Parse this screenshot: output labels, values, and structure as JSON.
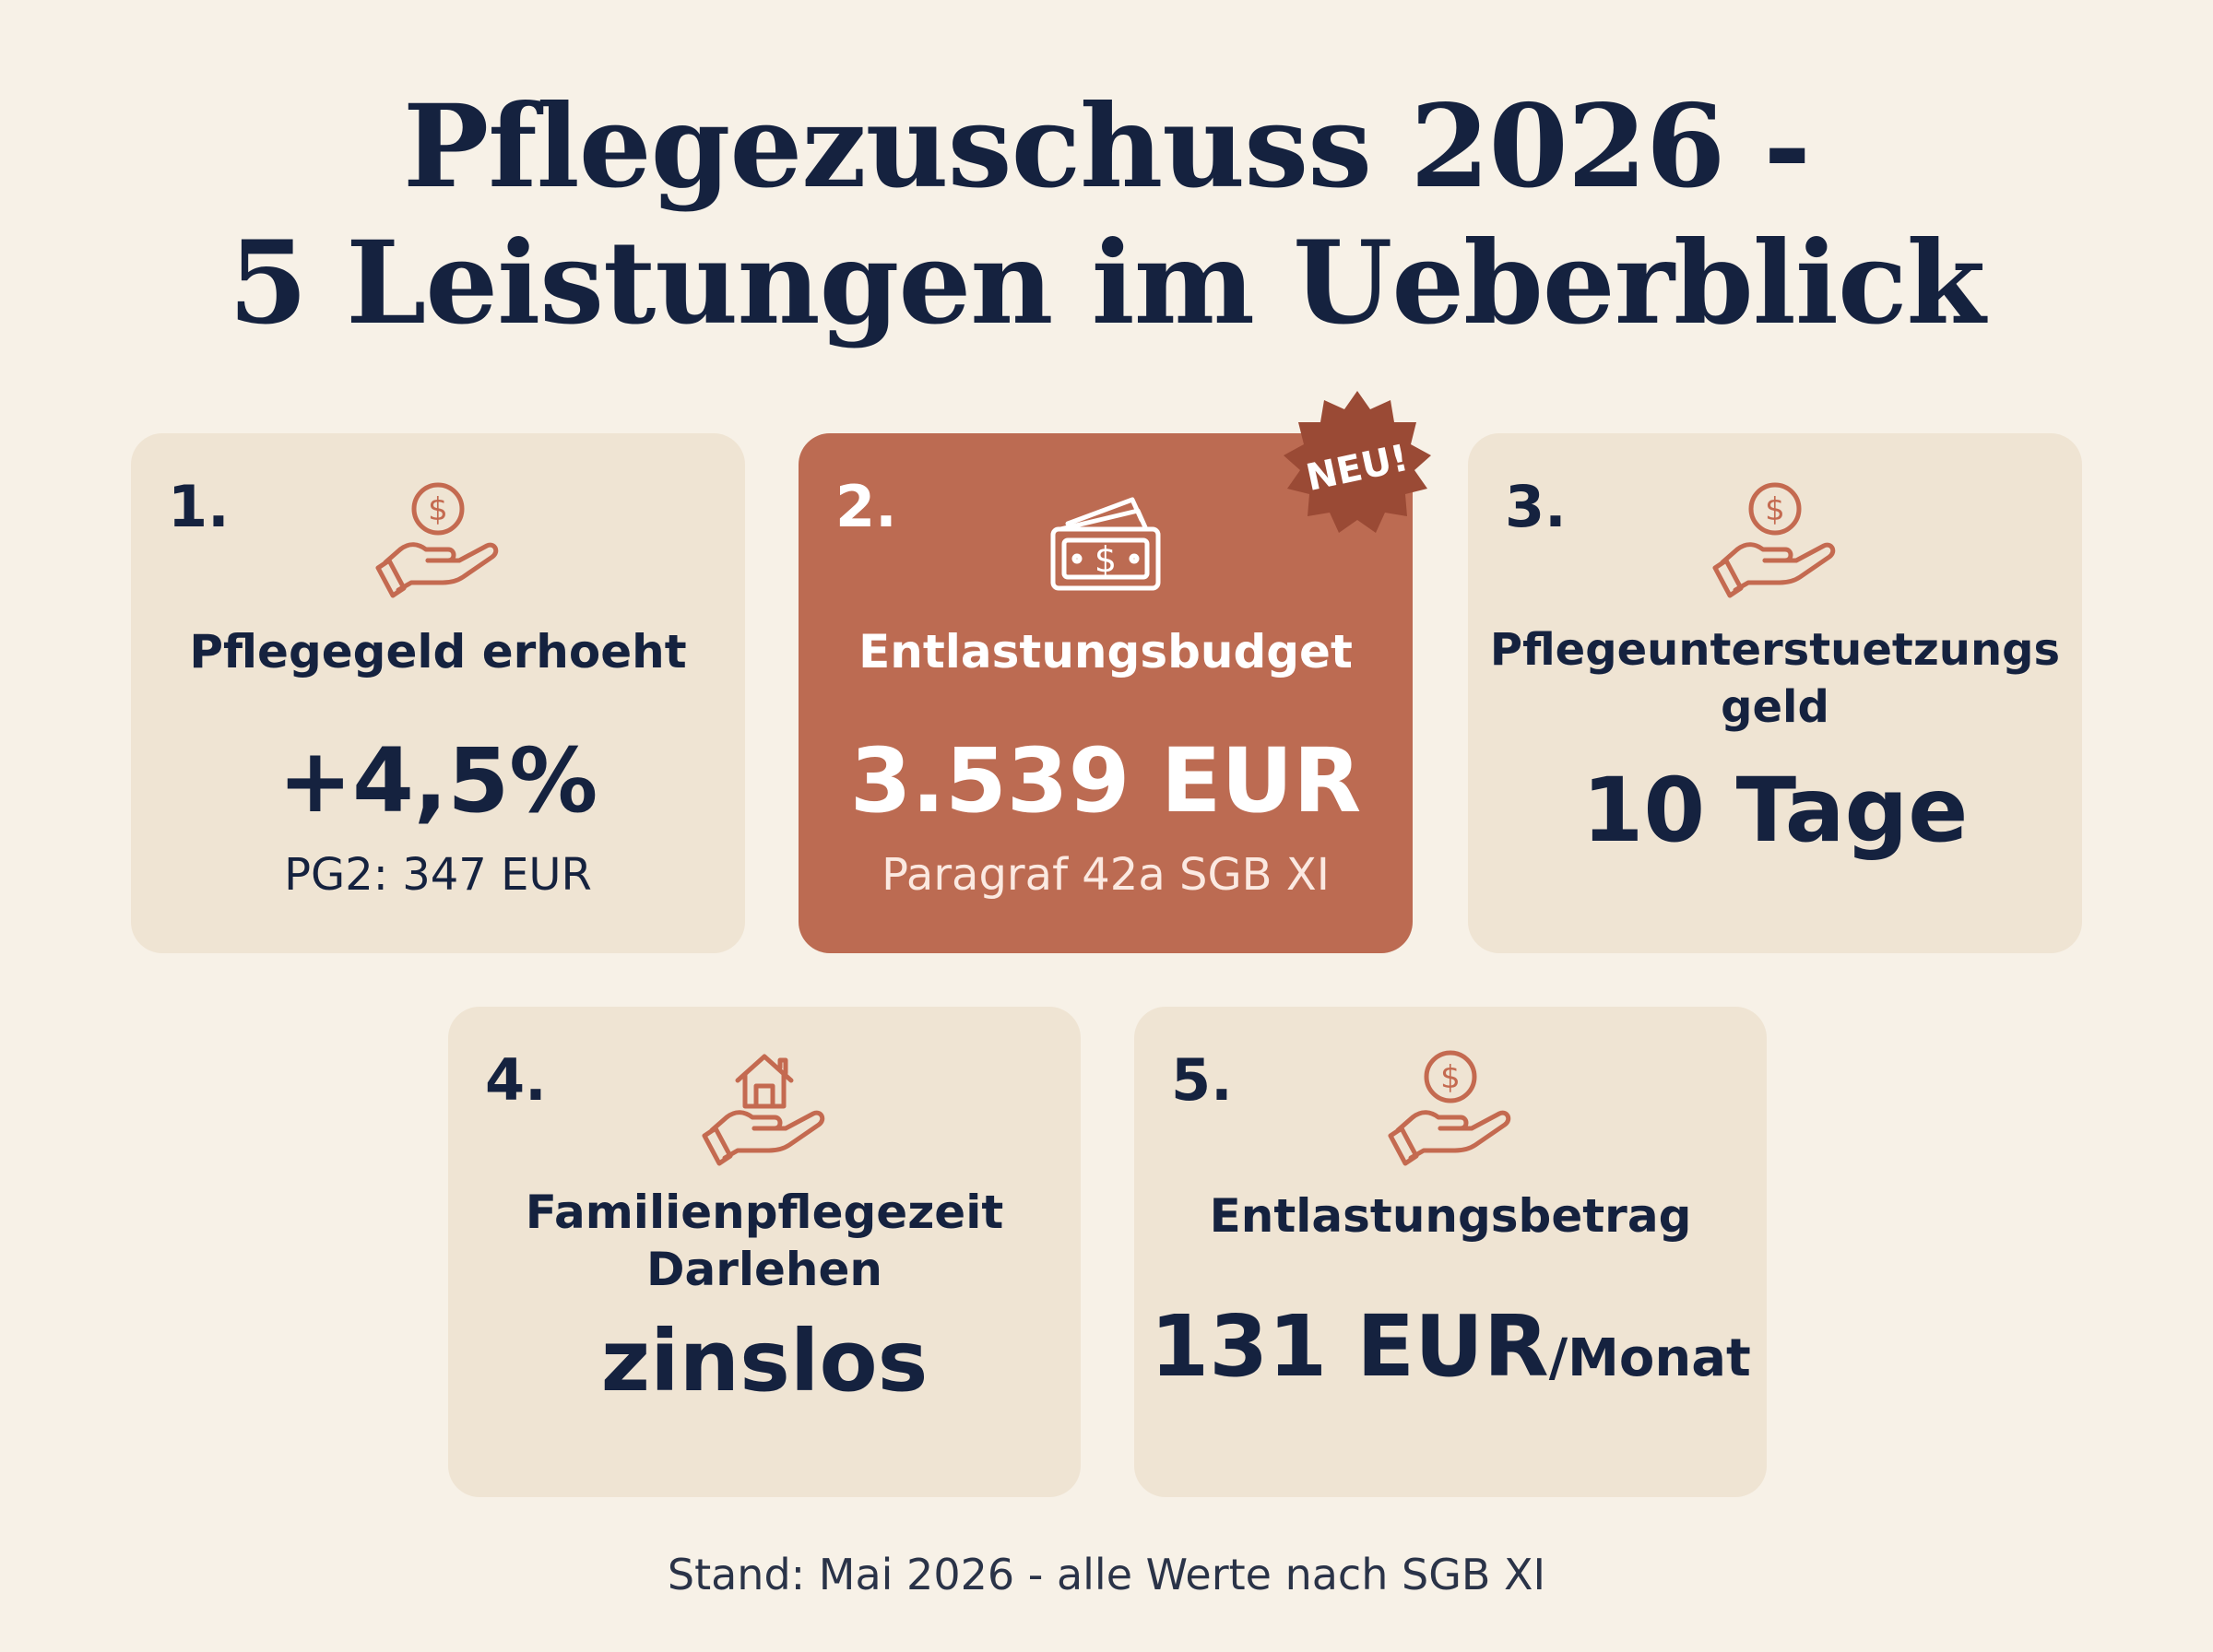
{
  "title": {
    "line1": "Pflegezuschuss 2026 -",
    "line2": "5 Leistungen im Ueberblick"
  },
  "colors": {
    "background": "#F7F1E7",
    "card": "#EFE4D3",
    "accent_card": "#BC6B52",
    "badge": "#9A4A35",
    "text": "#15223F",
    "icon_stroke": "#C46A50"
  },
  "cards": [
    {
      "number": "1.",
      "icon": "hand-coin-icon",
      "title": "Pflegegeld erhoeht",
      "value": "+4,5%",
      "sub": "PG2: 347 EUR"
    },
    {
      "number": "2.",
      "icon": "banknote-icon",
      "title": "Entlastungsbudget",
      "value": "3.539 EUR",
      "sub": "Paragraf 42a SGB XI",
      "badge": "NEU!"
    },
    {
      "number": "3.",
      "icon": "hand-coin-icon",
      "title_line1": "Pflegeunterstuetzungs",
      "title_line2": "geld",
      "value": "10 Tage"
    },
    {
      "number": "4.",
      "icon": "hand-house-icon",
      "title_line1": "Familienpflegezeit",
      "title_line2": "Darlehen",
      "value": "zinslos"
    },
    {
      "number": "5.",
      "icon": "hand-coin-icon",
      "title": "Entlastungsbetrag",
      "value": "131 EUR",
      "value_unit": "/Monat"
    }
  ],
  "footer": "Stand: Mai 2026 - alle Werte nach SGB XI"
}
